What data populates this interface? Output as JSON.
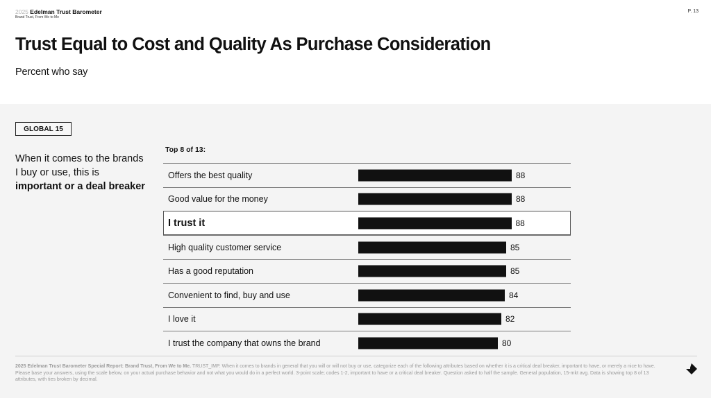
{
  "header": {
    "brand_year": "2025",
    "brand_name": "Edelman Trust Barometer",
    "brand_subtitle": "Brand Trust, From We to Me",
    "page_number": "P. 13"
  },
  "title": "Trust Equal to Cost and Quality As Purchase Consideration",
  "subtitle": "Percent who say",
  "region_badge": "GLOBAL 15",
  "question": {
    "line_regular": "When it comes to the brands I buy or use, this is ",
    "line_bold": "important or a deal breaker"
  },
  "chart_data": {
    "type": "bar",
    "orientation": "horizontal",
    "title": "Top 8 of 13:",
    "categories": [
      "Offers the best quality",
      "Good value for the money",
      "I trust it",
      "High quality customer service",
      "Has a good reputation",
      "Convenient to find, buy and use",
      "I love it",
      "I trust the company that owns the brand"
    ],
    "values": [
      88,
      88,
      88,
      85,
      85,
      84,
      82,
      80
    ],
    "highlighted": "I trust it",
    "xlabel": "",
    "ylabel": "",
    "unit": "percent",
    "xlim": [
      0,
      100
    ],
    "grid": false,
    "legend": false,
    "bar_color": "#111111",
    "highlight_border_color": "#555555"
  },
  "footnote": {
    "bold": "2025 Edelman Trust Barometer Special Report: Brand Trust, From We to Me.",
    "text": " TRUST_IMP. When it comes to brands in general that you will or will not buy or use, categorize each of the following attributes based on whether it is a critical deal breaker, important to have, or merely a nice to have. Please base your answers, using the scale below, on your actual purchase behavior and not what you would do in a perfect world. 3-point scale; codes 1-2, important  to have or a critical deal breaker. Question asked to half the sample. General population, 15-mkt avg. Data is showing top 8 of 13 attributes, with ties broken by decimal."
  },
  "nav": {
    "next_icon": "arrow-down-right-icon"
  }
}
